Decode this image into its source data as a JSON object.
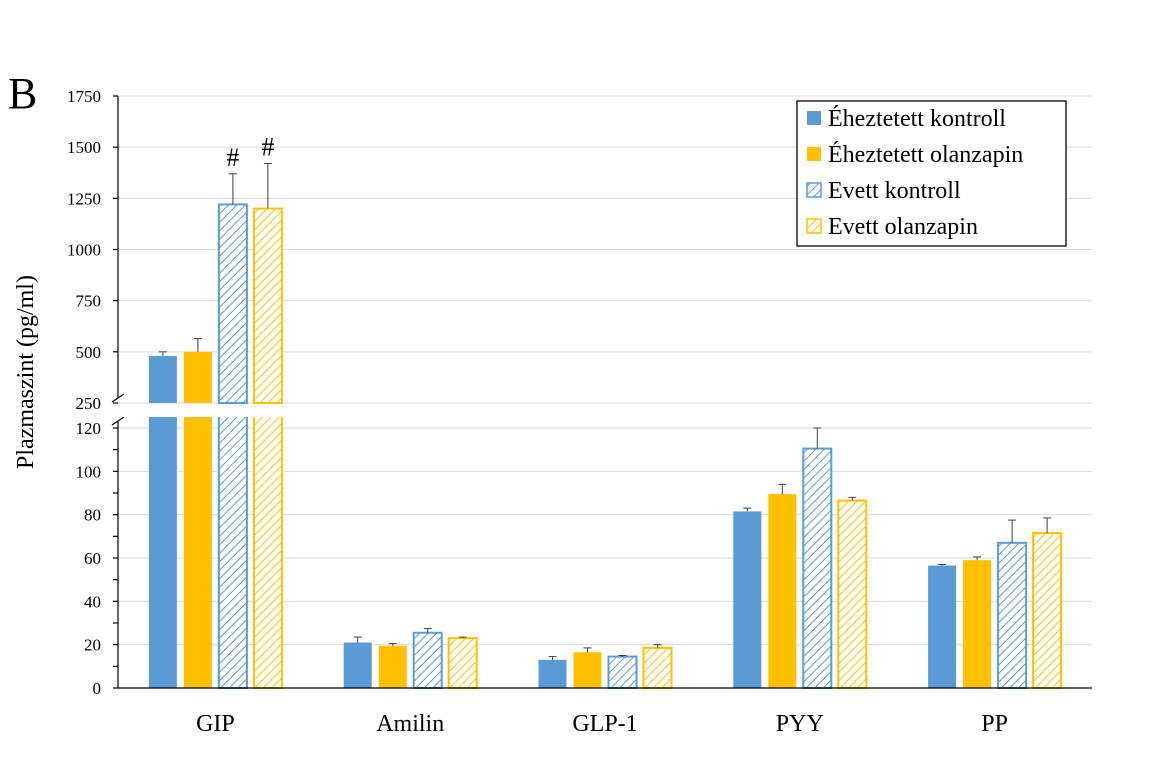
{
  "chart_data": {
    "type": "bar",
    "panel_label": "B",
    "title": "",
    "xlabel": "",
    "ylabel": "Plazmaszint (pg/ml)",
    "categories": [
      "GIP",
      "Amilin",
      "GLP-1",
      "PYY",
      "PP"
    ],
    "axis_break": {
      "lower_range": [
        0,
        120
      ],
      "upper_range": [
        250,
        1750
      ],
      "lower_ticks": [
        "0",
        "20",
        "40",
        "60",
        "80",
        "100",
        "120"
      ],
      "upper_ticks": [
        "250",
        "500",
        "750",
        "1000",
        "1250",
        "1500",
        "1750"
      ]
    },
    "grid": true,
    "legend_position": "top-right",
    "series": [
      {
        "name": "Éheztetett kontroll",
        "color": "#5b9bd5",
        "pattern": "solid",
        "values": [
          480,
          21,
          13,
          81.5,
          56.5
        ],
        "errors": [
          20,
          2.5,
          1.5,
          1.5,
          0.5
        ]
      },
      {
        "name": "Éheztetett olanzapin",
        "color": "#ffc000",
        "pattern": "solid",
        "values": [
          500,
          19.5,
          16.5,
          89.5,
          59
        ],
        "errors": [
          65,
          1,
          2,
          4.5,
          1.5
        ]
      },
      {
        "name": "Evett kontroll",
        "color": "#5b9bd5",
        "pattern": "hatched",
        "values": [
          1220,
          25.5,
          14.5,
          110.5,
          67
        ],
        "errors": [
          150,
          2,
          0.5,
          9.5,
          10.5
        ]
      },
      {
        "name": "Evett olanzapin",
        "color": "#ffc000",
        "pattern": "hatched",
        "values": [
          1200,
          23,
          18.5,
          86.5,
          71.5
        ],
        "errors": [
          220,
          0.5,
          1.5,
          1.5,
          7
        ]
      }
    ],
    "annotations": [
      {
        "text": "#",
        "category": "GIP",
        "series": "Evett kontroll"
      },
      {
        "text": "#",
        "category": "GIP",
        "series": "Evett olanzapin"
      }
    ]
  }
}
